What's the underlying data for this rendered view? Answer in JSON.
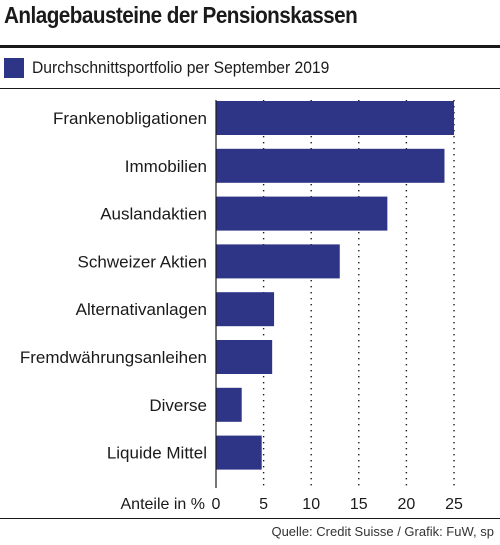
{
  "header": {
    "title": "Anlagebausteine der Pensionskassen"
  },
  "legend": {
    "label": "Durchschnittsportfolio per September 2019"
  },
  "chart_data": {
    "type": "bar",
    "orientation": "horizontal",
    "categories": [
      "Frankenobligationen",
      "Immobilien",
      "Auslandaktien",
      "Schweizer Aktien",
      "Alternativanlagen",
      "Fremdwährungsanleihen",
      "Diverse",
      "Liquide Mittel"
    ],
    "series": [
      {
        "name": "Durchschnittsportfolio per September 2019",
        "values": [
          25,
          24,
          18,
          13,
          6.1,
          5.9,
          2.7,
          4.8
        ]
      }
    ],
    "xlabel": "Anteile in %",
    "xlim": [
      0,
      27
    ],
    "xticks": [
      0,
      5,
      10,
      15,
      20,
      25
    ],
    "grid": true,
    "bar_color": "#2e3486"
  },
  "footer": {
    "source": "Quelle: Credit Suisse / Grafik: FuW, sp"
  }
}
